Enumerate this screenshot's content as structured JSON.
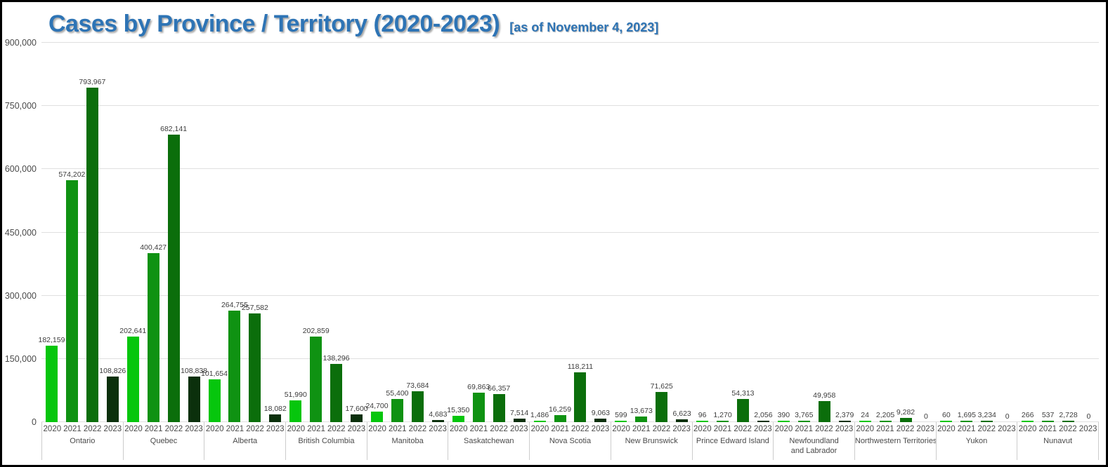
{
  "header": {
    "title": "Cases by Province / Territory (2020-2023)",
    "subtitle": "[as of November 4, 2023]",
    "title_color": "#2E74B5"
  },
  "chart_data": {
    "type": "bar",
    "title": "Cases by Province / Territory (2020-2023)",
    "subtitle": "[as of November 4, 2023]",
    "xlabel": "",
    "ylabel": "",
    "ylim": [
      0,
      900000
    ],
    "y_tick_interval": 150000,
    "y_tick_labels": [
      "0",
      "150,000",
      "300,000",
      "450,000",
      "600,000",
      "750,000",
      "900,000"
    ],
    "grid": true,
    "legend_position": "none",
    "data_labels": true,
    "series_dimension": "year",
    "years": [
      "2020",
      "2021",
      "2022",
      "2023"
    ],
    "year_colors": [
      "#06C60D",
      "#0F9212",
      "#0B6E0B",
      "#0B300C"
    ],
    "categories": [
      "Ontario",
      "Quebec",
      "Alberta",
      "British Columbia",
      "Manitoba",
      "Saskatchewan",
      "Nova Scotia",
      "New Brunswick",
      "Prince Edward Island",
      "Newfoundland and Labrador",
      "Northwestern Territories",
      "Yukon",
      "Nunavut"
    ],
    "groups": [
      {
        "province": "Ontario",
        "province_label": "Ontario",
        "values": [
          182159,
          574202,
          793967,
          108826
        ]
      },
      {
        "province": "Quebec",
        "province_label": "Quebec",
        "values": [
          202641,
          400427,
          682141,
          108838
        ]
      },
      {
        "province": "Alberta",
        "province_label": "Alberta",
        "values": [
          101654,
          264755,
          257582,
          18082
        ]
      },
      {
        "province": "British Columbia",
        "province_label": "British Columbia",
        "values": [
          51990,
          202859,
          138296,
          17600
        ]
      },
      {
        "province": "Manitoba",
        "province_label": "Manitoba",
        "values": [
          24700,
          55400,
          73684,
          4683
        ]
      },
      {
        "province": "Saskatchewan",
        "province_label": "Saskatchewan",
        "values": [
          15350,
          69863,
          66357,
          7514
        ]
      },
      {
        "province": "Nova Scotia",
        "province_label": "Nova Scotia",
        "values": [
          1486,
          16259,
          118211,
          9063
        ]
      },
      {
        "province": "New Brunswick",
        "province_label": "New Brunswick",
        "values": [
          599,
          13673,
          71625,
          6623
        ]
      },
      {
        "province": "Prince Edward Island",
        "province_label": "Prince Edward Island",
        "values": [
          96,
          1270,
          54313,
          2056
        ]
      },
      {
        "province": "Newfoundland and Labrador",
        "province_label": "Newfoundland\nand Labrador",
        "values": [
          390,
          3765,
          49958,
          2379
        ]
      },
      {
        "province": "Northwestern Territories",
        "province_label": "Northwestern Territories",
        "values": [
          24,
          2205,
          9282,
          0
        ]
      },
      {
        "province": "Yukon",
        "province_label": "Yukon",
        "values": [
          60,
          1695,
          3234,
          0
        ]
      },
      {
        "province": "Nunavut",
        "province_label": "Nunavut",
        "values": [
          266,
          537,
          2728,
          0
        ]
      }
    ]
  }
}
